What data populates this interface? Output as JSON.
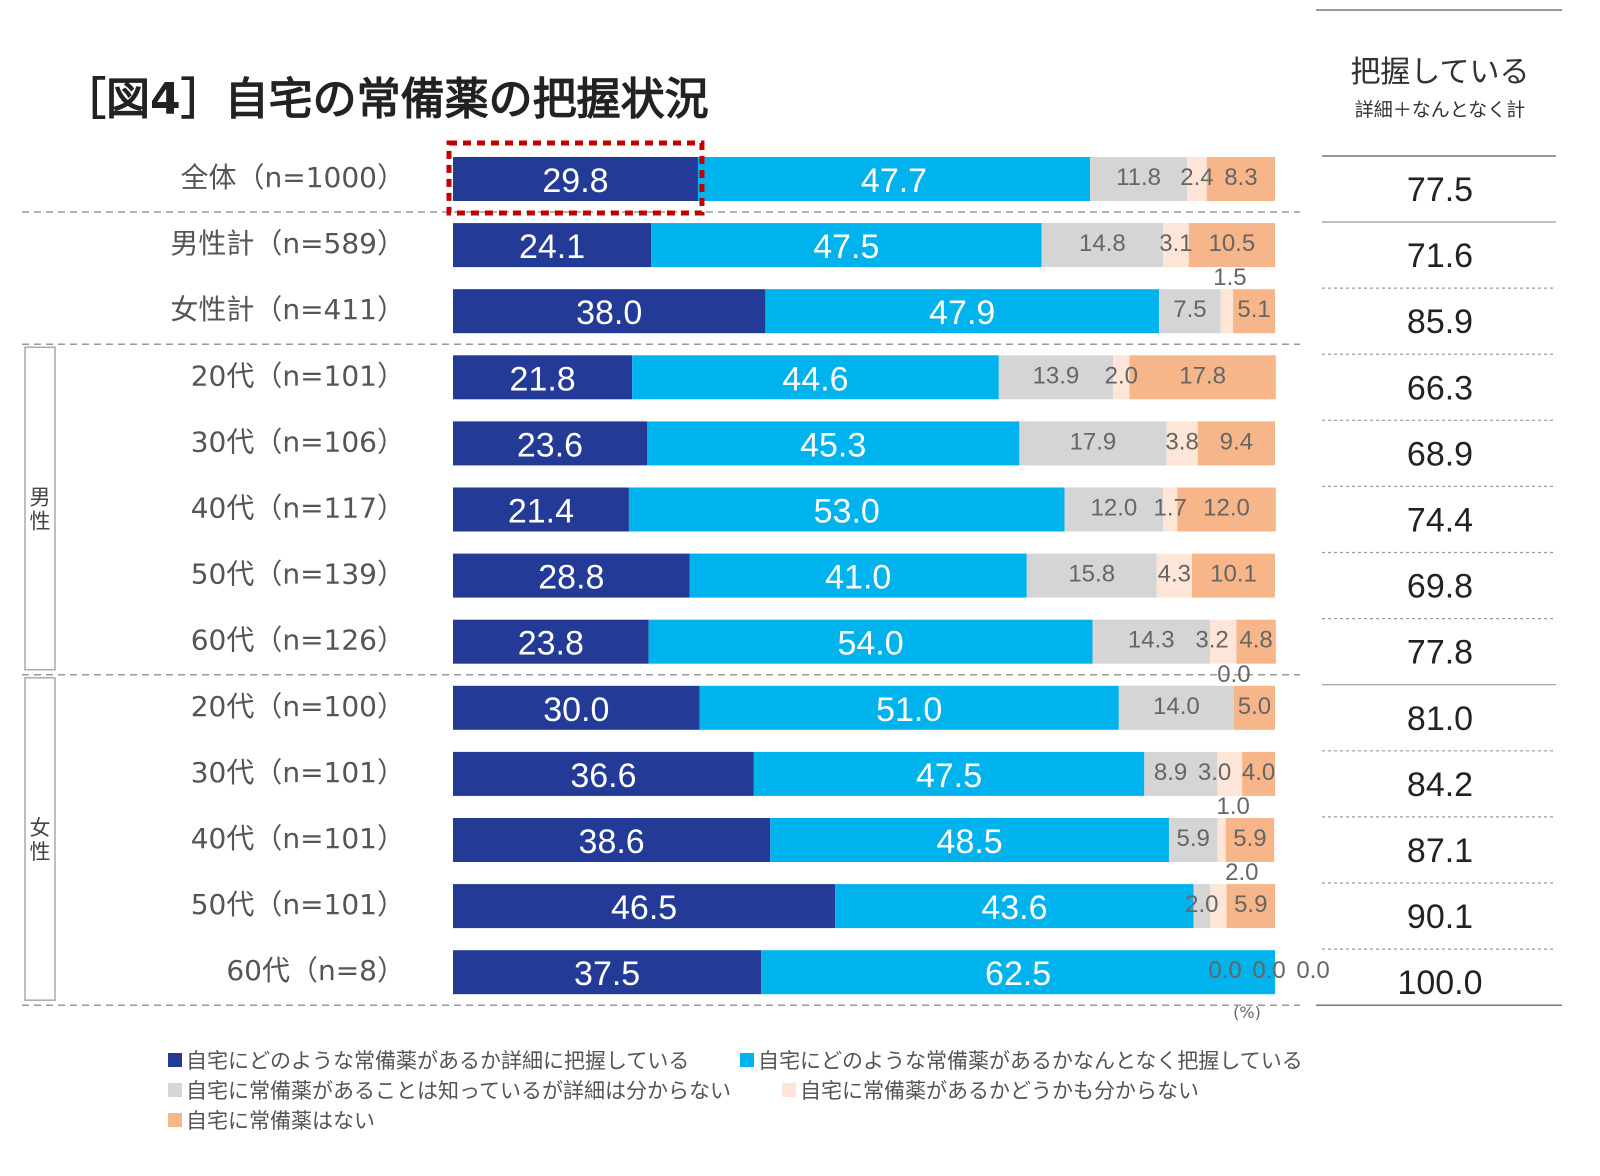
{
  "chart_data": {
    "type": "bar",
    "orientation": "horizontal",
    "stacked": true,
    "title": "［図4］自宅の常備薬の把握状況",
    "unit": "(%)",
    "xlim": [
      0,
      100
    ],
    "categories": [
      "全体（n=1000）",
      "男性計（n=589）",
      "女性計（n=411）",
      "20代（n=101）",
      "30代（n=106）",
      "40代（n=117）",
      "50代（n=139）",
      "60代（n=126）",
      "20代（n=100）",
      "30代（n=101）",
      "40代（n=101）",
      "50代（n=101）",
      "60代（n=8）"
    ],
    "groups": [
      {
        "label": "男性",
        "rows": [
          3,
          7
        ]
      },
      {
        "label": "女性",
        "rows": [
          8,
          12
        ]
      }
    ],
    "series": [
      {
        "name": "自宅にどのような常備薬があるか詳細に把握している",
        "color": "#233a96",
        "values": [
          29.8,
          24.1,
          38.0,
          21.8,
          23.6,
          21.4,
          28.8,
          23.8,
          30.0,
          36.6,
          38.6,
          46.5,
          37.5
        ]
      },
      {
        "name": "自宅にどのような常備薬があるかなんとなく把握している",
        "color": "#00b3ec",
        "values": [
          47.7,
          47.5,
          47.9,
          44.6,
          45.3,
          53.0,
          41.0,
          54.0,
          51.0,
          47.5,
          48.5,
          43.6,
          62.5
        ]
      },
      {
        "name": "自宅に常備薬があることは知っているが詳細は分からない",
        "color": "#d5d5d5",
        "values": [
          11.8,
          14.8,
          7.5,
          13.9,
          17.9,
          12.0,
          15.8,
          14.3,
          14.0,
          8.9,
          5.9,
          2.0,
          0.0
        ]
      },
      {
        "name": "自宅に常備薬があるかどうかも分からない",
        "color": "#fde6d8",
        "values": [
          2.4,
          3.1,
          1.5,
          2.0,
          3.8,
          1.7,
          4.3,
          3.2,
          0.0,
          3.0,
          1.0,
          2.0,
          0.0
        ]
      },
      {
        "name": "自宅に常備薬はない",
        "color": "#f7b68a",
        "values": [
          8.3,
          10.5,
          5.1,
          17.8,
          9.4,
          12.0,
          10.1,
          4.8,
          5.0,
          4.0,
          5.9,
          5.9,
          0.0
        ]
      }
    ],
    "total_column": {
      "header": "把握している",
      "subheader": "詳細＋なんとなく計",
      "values": [
        "77.5",
        "71.6",
        "85.9",
        "66.3",
        "68.9",
        "74.4",
        "69.8",
        "77.8",
        "81.0",
        "84.2",
        "87.1",
        "90.1",
        "100.0"
      ]
    },
    "highlight": {
      "row": 0,
      "series": 0,
      "color": "#c00000"
    }
  }
}
